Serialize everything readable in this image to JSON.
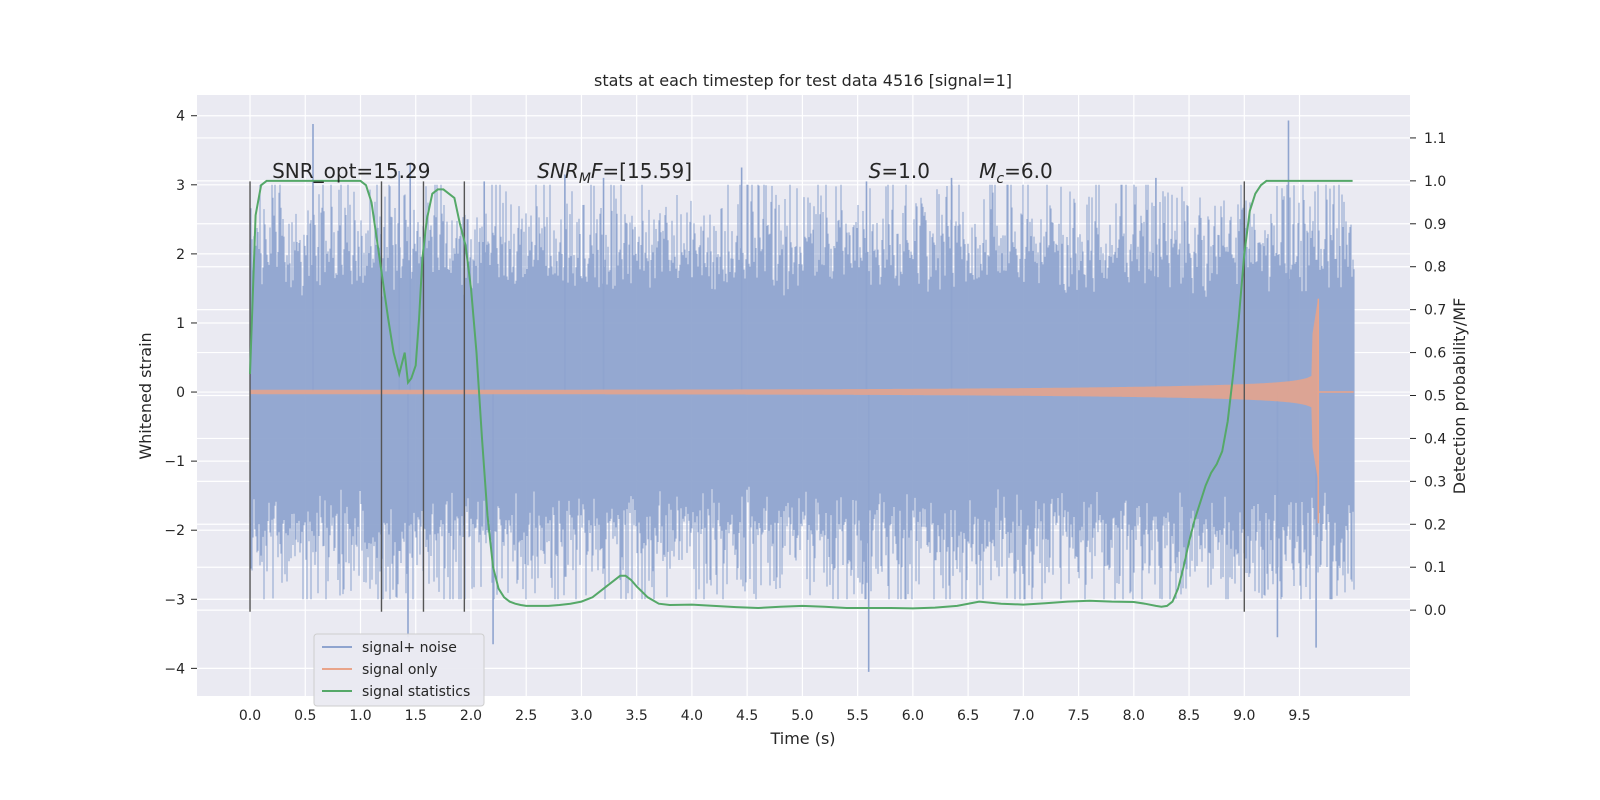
{
  "chart_data": {
    "type": "line",
    "title": "stats at each timestep for test data 4516 [signal=1]",
    "xlabel": "Time (s)",
    "ylabel": "Whitened strain",
    "y2label": "Detection probability/MF",
    "xlim": [
      -0.48,
      10.5
    ],
    "ylim": [
      -4.4,
      4.3
    ],
    "y2lim": [
      -0.2,
      1.2
    ],
    "x_ticks": [
      0.0,
      0.5,
      1.0,
      1.5,
      2.0,
      2.5,
      3.0,
      3.5,
      4.0,
      4.5,
      5.0,
      5.5,
      6.0,
      6.5,
      7.0,
      7.5,
      8.0,
      8.5,
      9.0,
      9.5
    ],
    "x_tick_labels": [
      "0.0",
      "0.5",
      "1.0",
      "1.5",
      "2.0",
      "2.5",
      "3.0",
      "3.5",
      "4.0",
      "4.5",
      "5.0",
      "5.5",
      "6.0",
      "6.5",
      "7.0",
      "7.5",
      "8.0",
      "8.5",
      "9.0",
      "9.5"
    ],
    "y_ticks": [
      -4,
      -3,
      -2,
      -1,
      0,
      1,
      2,
      3,
      4
    ],
    "y_tick_labels": [
      "−4",
      "−3",
      "−2",
      "−1",
      "0",
      "1",
      "2",
      "3",
      "4"
    ],
    "y2_ticks": [
      0.0,
      0.1,
      0.2,
      0.3,
      0.4,
      0.5,
      0.6,
      0.7,
      0.8,
      0.9,
      1.0,
      1.1
    ],
    "y2_tick_labels": [
      "0.0",
      "0.1",
      "0.2",
      "0.3",
      "0.4",
      "0.5",
      "0.6",
      "0.7",
      "0.8",
      "0.9",
      "1.0",
      "1.1"
    ],
    "grid": true,
    "legend_position": "bottom-left",
    "annotations": [
      {
        "prefix": "SNR_opt=15.29",
        "sub": "",
        "suffix": "",
        "x": 0.2,
        "italic": false
      },
      {
        "prefix": "SNR",
        "sub": "M",
        "suffix": "F=[15.59]",
        "x": 2.6,
        "italic": true
      },
      {
        "prefix": "S",
        "sub": "",
        "suffix": "=1.0",
        "x": 5.6,
        "italic": true
      },
      {
        "prefix": "M",
        "sub": "c",
        "suffix": "=6.0",
        "x": 6.6,
        "italic": true
      }
    ],
    "annotation_y": 3.1,
    "series": [
      {
        "name": "signal+ noise",
        "color": "#8fa4cf",
        "kind": "noise",
        "x_range": [
          0.0,
          10.0
        ],
        "envelope": 1.8,
        "spikes": [
          [
            0.57,
            3.88
          ],
          [
            1.35,
            3.2
          ],
          [
            1.45,
            3.3
          ],
          [
            2.12,
            3.05
          ],
          [
            2.2,
            -3.65
          ],
          [
            2.85,
            3.15
          ],
          [
            3.2,
            3.1
          ],
          [
            4.45,
            3.25
          ],
          [
            5.58,
            3.05
          ],
          [
            5.6,
            -4.05
          ],
          [
            6.35,
            3.1
          ],
          [
            8.2,
            3.1
          ],
          [
            9.4,
            3.93
          ],
          [
            9.65,
            -3.7
          ],
          [
            1.43,
            -3.55
          ],
          [
            9.3,
            -3.55
          ]
        ]
      },
      {
        "name": "signal only",
        "color": "#e9a48a",
        "kind": "chirp",
        "x_range": [
          0.0,
          9.99
        ],
        "merger_x": 9.67,
        "peak_amplitude": 1.35
      },
      {
        "name": "signal statistics",
        "color": "#55a868",
        "kind": "line",
        "axis": "y2",
        "x": [
          0.0,
          0.05,
          0.1,
          0.15,
          0.2,
          0.25,
          0.3,
          0.5,
          0.7,
          0.9,
          1.0,
          1.05,
          1.1,
          1.15,
          1.2,
          1.25,
          1.3,
          1.35,
          1.4,
          1.43,
          1.46,
          1.5,
          1.53,
          1.56,
          1.6,
          1.65,
          1.7,
          1.75,
          1.8,
          1.85,
          1.9,
          1.95,
          2.0,
          2.05,
          2.1,
          2.15,
          2.2,
          2.25,
          2.3,
          2.35,
          2.4,
          2.45,
          2.5,
          2.6,
          2.7,
          2.8,
          2.9,
          3.0,
          3.1,
          3.2,
          3.3,
          3.35,
          3.4,
          3.45,
          3.5,
          3.6,
          3.7,
          3.8,
          4.0,
          4.2,
          4.4,
          4.6,
          4.8,
          5.0,
          5.2,
          5.4,
          5.6,
          5.8,
          6.0,
          6.2,
          6.4,
          6.6,
          6.8,
          7.0,
          7.2,
          7.4,
          7.6,
          7.8,
          8.0,
          8.1,
          8.2,
          8.25,
          8.3,
          8.35,
          8.4,
          8.45,
          8.5,
          8.55,
          8.6,
          8.65,
          8.7,
          8.75,
          8.8,
          8.85,
          8.9,
          8.95,
          9.0,
          9.05,
          9.1,
          9.15,
          9.2,
          9.3,
          9.5,
          9.7,
          9.9,
          9.98
        ],
        "y": [
          0.55,
          0.92,
          0.99,
          1.0,
          1.0,
          1.0,
          1.0,
          1.0,
          1.0,
          1.0,
          1.0,
          0.99,
          0.95,
          0.86,
          0.77,
          0.68,
          0.6,
          0.55,
          0.6,
          0.53,
          0.54,
          0.57,
          0.68,
          0.82,
          0.91,
          0.97,
          0.98,
          0.98,
          0.97,
          0.96,
          0.9,
          0.85,
          0.75,
          0.6,
          0.4,
          0.22,
          0.1,
          0.05,
          0.03,
          0.02,
          0.015,
          0.012,
          0.01,
          0.01,
          0.01,
          0.012,
          0.015,
          0.02,
          0.03,
          0.05,
          0.07,
          0.08,
          0.08,
          0.07,
          0.055,
          0.03,
          0.015,
          0.012,
          0.013,
          0.01,
          0.007,
          0.005,
          0.008,
          0.01,
          0.008,
          0.005,
          0.005,
          0.005,
          0.004,
          0.006,
          0.01,
          0.02,
          0.015,
          0.013,
          0.016,
          0.02,
          0.022,
          0.02,
          0.019,
          0.015,
          0.01,
          0.008,
          0.01,
          0.02,
          0.05,
          0.1,
          0.16,
          0.21,
          0.25,
          0.29,
          0.32,
          0.34,
          0.37,
          0.44,
          0.55,
          0.68,
          0.83,
          0.93,
          0.97,
          0.99,
          1.0,
          1.0,
          1.0,
          1.0,
          1.0,
          1.0
        ]
      }
    ],
    "vlines": [
      0.0,
      1.19,
      1.57,
      1.94,
      9.0
    ]
  },
  "colors": {
    "plot_bg": "#eaeaf2",
    "grid": "#ffffff",
    "vline": "#555555"
  }
}
